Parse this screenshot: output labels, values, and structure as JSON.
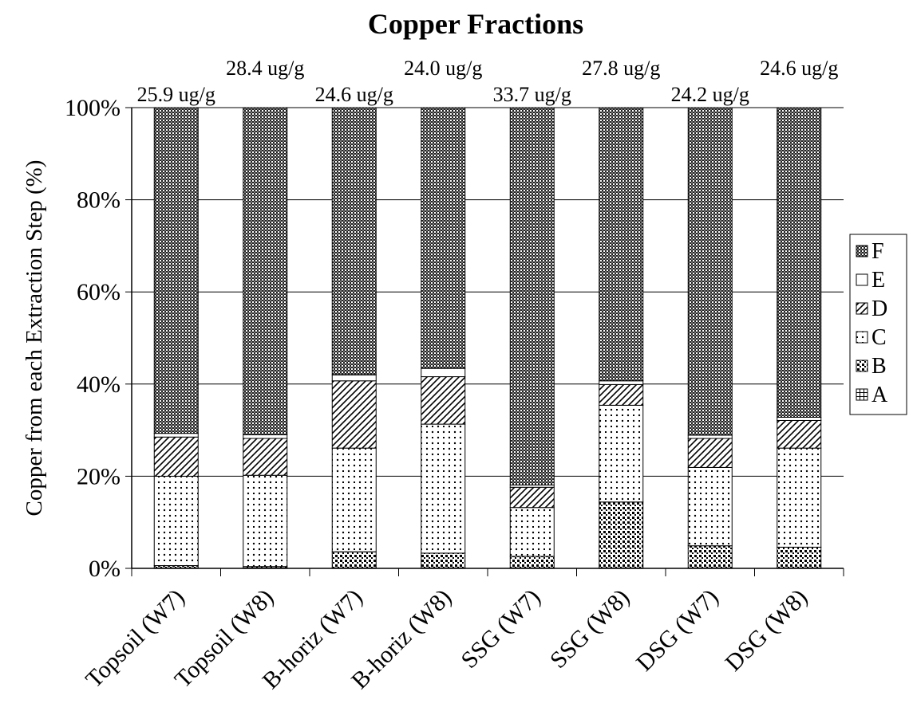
{
  "chart_data": {
    "type": "bar",
    "stacked": true,
    "normalized": true,
    "title": "Copper Fractions",
    "xlabel": "",
    "ylabel": "Copper from each Extraction Step (%)",
    "ylim": [
      0,
      100
    ],
    "yticks": [
      "0%",
      "20%",
      "40%",
      "60%",
      "80%",
      "100%"
    ],
    "grid": true,
    "legend_position": "right",
    "categories": [
      "Topsoil (W7)",
      "Topsoil (W8)",
      "B-horiz (W7)",
      "B-horiz (W8)",
      "SSG (W7)",
      "SSG (W8)",
      "DSG (W7)",
      "DSG (W8)"
    ],
    "totals": [
      "25.9 ug/g",
      "28.4 ug/g",
      "24.6 ug/g",
      "24.0 ug/g",
      "33.7 ug/g",
      "27.8 ug/g",
      "24.2 ug/g",
      "24.6 ug/g"
    ],
    "series": [
      {
        "name": "A",
        "pattern": "grid-cross",
        "values": [
          0.1,
          0.1,
          0.1,
          0.1,
          0.1,
          0.1,
          0.1,
          0.1
        ]
      },
      {
        "name": "B",
        "pattern": "dense-dots",
        "values": [
          0.5,
          0.3,
          3.5,
          3.2,
          2.5,
          14.3,
          4.8,
          4.5
        ]
      },
      {
        "name": "C",
        "pattern": "sparse-dots",
        "values": [
          19.4,
          19.8,
          22.5,
          28.0,
          10.6,
          21.0,
          17.0,
          21.5
        ]
      },
      {
        "name": "D",
        "pattern": "diagonal",
        "values": [
          8.5,
          8.0,
          14.6,
          10.3,
          4.4,
          4.5,
          6.3,
          6.0
        ]
      },
      {
        "name": "E",
        "pattern": "white",
        "values": [
          0.8,
          0.8,
          1.3,
          1.8,
          0.5,
          0.8,
          0.7,
          0.7
        ]
      },
      {
        "name": "F",
        "pattern": "fine-check",
        "values": [
          70.7,
          71.0,
          58.0,
          56.6,
          81.9,
          59.3,
          71.1,
          67.2
        ]
      }
    ]
  }
}
